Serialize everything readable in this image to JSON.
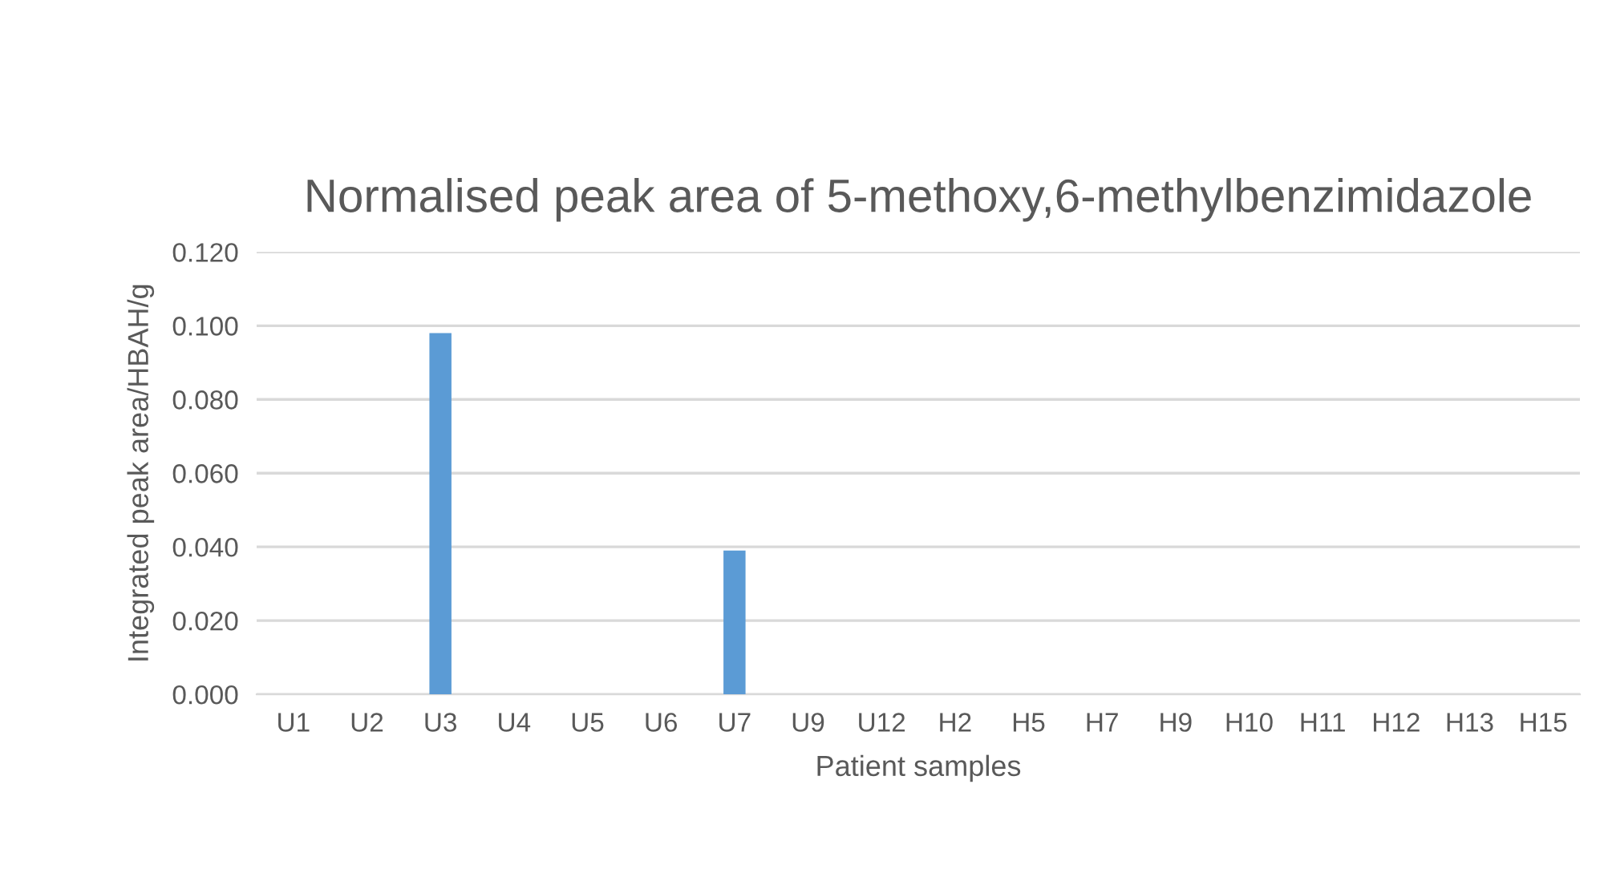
{
  "chart_data": {
    "type": "bar",
    "title": "Normalised peak area of 5-methoxy,6-methylbenzimidazole",
    "xlabel": "Patient samples",
    "ylabel": "Integrated peak area/HBAH/g",
    "categories": [
      "U1",
      "U2",
      "U3",
      "U4",
      "U5",
      "U6",
      "U7",
      "U9",
      "U12",
      "H2",
      "H5",
      "H7",
      "H9",
      "H10",
      "H11",
      "H12",
      "H13",
      "H15"
    ],
    "values": [
      0,
      0,
      0.098,
      0,
      0,
      0,
      0.039,
      0,
      0,
      0,
      0,
      0,
      0,
      0,
      0,
      0,
      0,
      0
    ],
    "color": "#5b9bd5",
    "ylim": [
      0,
      0.12
    ],
    "yticks": [
      {
        "value": 0,
        "label": "0.000"
      },
      {
        "value": 0.02,
        "label": "0.020"
      },
      {
        "value": 0.04,
        "label": "0.040"
      },
      {
        "value": 0.06,
        "label": "0.060"
      },
      {
        "value": 0.08,
        "label": "0.080"
      },
      {
        "value": 0.1,
        "label": "0.100"
      },
      {
        "value": 0.12,
        "label": "0.120"
      }
    ],
    "grid": "y",
    "legend": false
  }
}
